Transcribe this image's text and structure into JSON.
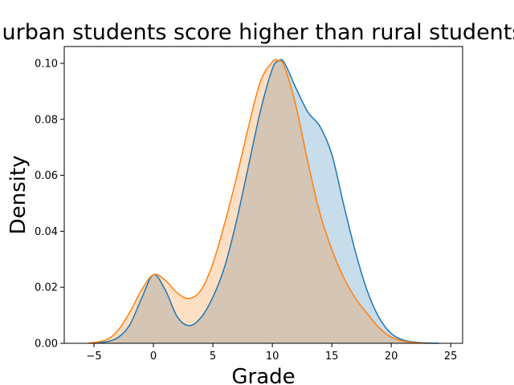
{
  "chart_data": {
    "type": "area",
    "title": "urban students score higher than rural students",
    "xlabel": "Grade",
    "ylabel": "Density",
    "xlim": [
      -7.5,
      26
    ],
    "ylim": [
      0,
      0.106
    ],
    "x_ticks": [
      -5,
      0,
      5,
      10,
      15,
      20,
      25
    ],
    "y_ticks": [
      0.0,
      0.02,
      0.04,
      0.06,
      0.08,
      0.1
    ],
    "y_tick_labels": [
      "0.00",
      "0.02",
      "0.04",
      "0.06",
      "0.08",
      "0.10"
    ],
    "grid": false,
    "legend": "none",
    "series": [
      {
        "color": "#1f77b4",
        "fill_opacity": 0.25,
        "x": [
          -5,
          -4,
          -3,
          -2,
          -1,
          0,
          1,
          2,
          3,
          4,
          5,
          6,
          7,
          8,
          9,
          10,
          10.5,
          11,
          12,
          13,
          14,
          15,
          16,
          17,
          18,
          19,
          20,
          21,
          22,
          23,
          24
        ],
        "y": [
          0.0,
          0.0005,
          0.002,
          0.0065,
          0.016,
          0.0245,
          0.019,
          0.0095,
          0.0063,
          0.0092,
          0.0165,
          0.0275,
          0.044,
          0.0635,
          0.083,
          0.098,
          0.1008,
          0.1003,
          0.091,
          0.0825,
          0.0775,
          0.0675,
          0.0495,
          0.0325,
          0.0185,
          0.009,
          0.0035,
          0.0012,
          0.0004,
          0.0001,
          0.0
        ]
      },
      {
        "color": "#ff7f0e",
        "fill_opacity": 0.25,
        "x": [
          -5.5,
          -4,
          -3,
          -2,
          -1,
          0,
          1,
          2,
          3,
          4,
          5,
          6,
          7,
          8,
          9,
          10,
          10.5,
          11,
          12,
          13,
          14,
          15,
          16,
          17,
          18,
          19,
          20,
          21,
          22,
          23
        ],
        "y": [
          0.0,
          0.0012,
          0.0045,
          0.011,
          0.019,
          0.0245,
          0.0225,
          0.018,
          0.016,
          0.019,
          0.0285,
          0.043,
          0.0595,
          0.0775,
          0.0935,
          0.1005,
          0.101,
          0.099,
          0.0845,
          0.0645,
          0.0465,
          0.0335,
          0.0235,
          0.016,
          0.0105,
          0.0055,
          0.0022,
          0.0008,
          0.0002,
          0.0
        ]
      }
    ]
  }
}
